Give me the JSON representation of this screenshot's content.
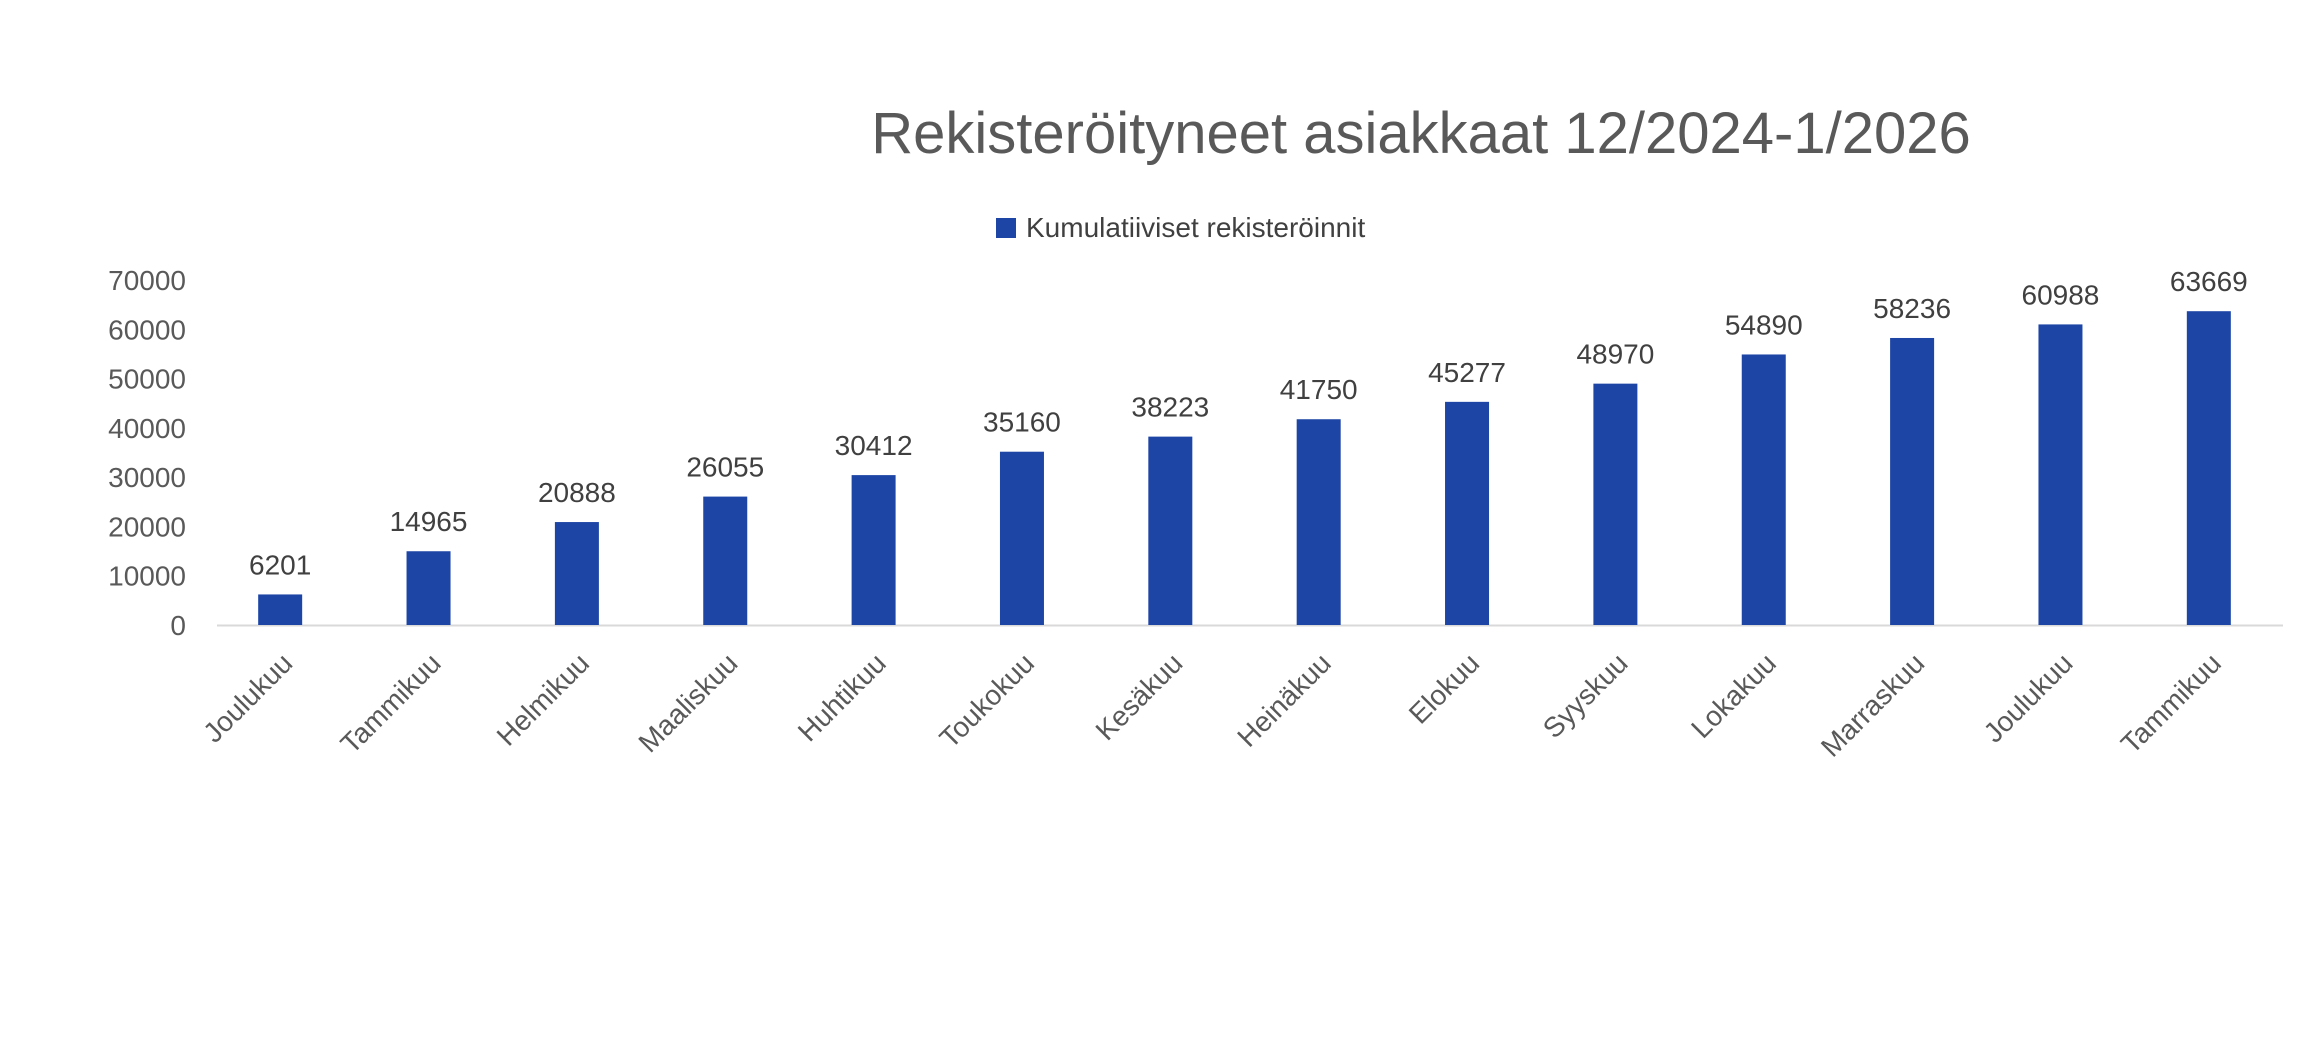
{
  "chart_data": {
    "type": "bar",
    "title": "Rekisteröityneet asiakkaat 12/2024-1/2026",
    "legend": "Kumulatiiviset rekisteröinnit",
    "legend_position": "top",
    "categories": [
      "Joulukuu",
      "Tammikuu",
      "Helmikuu",
      "Maaliskuu",
      "Huhtikuu",
      "Toukokuu",
      "Kesäkuu",
      "Heinäkuu",
      "Elokuu",
      "Syyskuu",
      "Lokakuu",
      "Marraskuu",
      "Joulukuu",
      "Tammikuu"
    ],
    "values": [
      6201,
      14965,
      20888,
      26055,
      30412,
      35160,
      38223,
      41750,
      45277,
      48970,
      54890,
      58236,
      60988,
      63669
    ],
    "yticks": [
      0,
      10000,
      20000,
      30000,
      40000,
      50000,
      60000,
      70000
    ],
    "ylim": [
      0,
      70000
    ],
    "xlabel": "",
    "ylabel": "",
    "grid": false,
    "bar_color": "#1D45A6"
  }
}
